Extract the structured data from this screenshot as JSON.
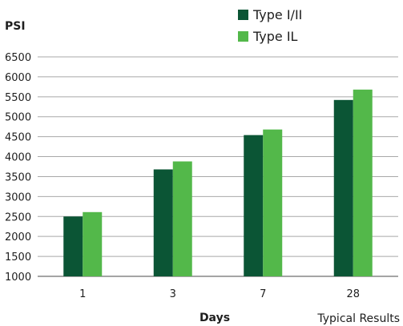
{
  "chart_data": {
    "type": "bar",
    "title": "",
    "xlabel": "Days",
    "ylabel": "PSI",
    "categories": [
      "1",
      "3",
      "7",
      "28"
    ],
    "series": [
      {
        "name": "Type I/II",
        "values": [
          2500,
          3680,
          4540,
          5420
        ],
        "color": "#0b5535"
      },
      {
        "name": "Type IL",
        "values": [
          2610,
          3880,
          4680,
          5680
        ],
        "color": "#53b84a"
      }
    ],
    "ylim": [
      1000,
      6500
    ],
    "yticks": [
      1000,
      1500,
      2000,
      2500,
      3000,
      3500,
      4000,
      4500,
      5000,
      5500,
      6000,
      6500
    ],
    "grid": true,
    "legend_position": "top-right",
    "footnote": "Typical Results"
  }
}
